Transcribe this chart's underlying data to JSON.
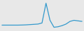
{
  "x": [
    0,
    1,
    2,
    3,
    4,
    5,
    6,
    7,
    8,
    9,
    10,
    11,
    12,
    13,
    14,
    15,
    16,
    17,
    18,
    19,
    20
  ],
  "y": [
    1,
    1,
    1,
    1,
    1,
    1.2,
    1.5,
    2,
    2.5,
    3,
    5,
    42,
    10,
    -3,
    -2,
    0,
    3,
    8,
    10,
    9,
    8
  ],
  "line_color": "#3399cc",
  "line_width": 0.9,
  "background_color": "#e8e8e8",
  "ylim": [
    -10,
    48
  ],
  "xlim": [
    -0.5,
    20.5
  ]
}
